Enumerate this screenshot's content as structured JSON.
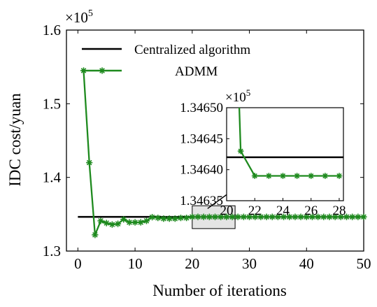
{
  "chart_data": {
    "type": "line",
    "xlabel": "Number of iterations",
    "ylabel": "IDC cost/yuan",
    "y_multiplier": "×10",
    "y_multiplier_exp": "5",
    "xlim": [
      -2,
      50
    ],
    "ylim": [
      1.3,
      1.6
    ],
    "x_ticks": [
      "0",
      "10",
      "20",
      "30",
      "40",
      "50"
    ],
    "y_ticks": [
      "1.3",
      "1.4",
      "1.5",
      "1.6"
    ],
    "legend_position": "top-right",
    "series": [
      {
        "name": "Centralized algorithm",
        "color": "#000000",
        "style": "solid",
        "x": [
          0,
          50
        ],
        "y": [
          1.3464,
          1.3464
        ]
      },
      {
        "name": "ADMM",
        "color": "#1e8a1e",
        "marker": "asterisk",
        "x": [
          1,
          2,
          3,
          4,
          5,
          6,
          7,
          8,
          9,
          10,
          11,
          12,
          13,
          14,
          15,
          16,
          17,
          18,
          19,
          20,
          21,
          22,
          23,
          24,
          25,
          26,
          27,
          28,
          29,
          30,
          31,
          32,
          33,
          34,
          35,
          36,
          37,
          38,
          39,
          40,
          41,
          42,
          43,
          44,
          45,
          46,
          47,
          48,
          49,
          50
        ],
        "y": [
          1.545,
          1.42,
          1.322,
          1.341,
          1.338,
          1.336,
          1.337,
          1.343,
          1.339,
          1.339,
          1.339,
          1.341,
          1.346,
          1.345,
          1.344,
          1.344,
          1.344,
          1.345,
          1.345,
          1.3464,
          1.34643,
          1.34639,
          1.34639,
          1.34639,
          1.34639,
          1.34639,
          1.34639,
          1.34639,
          1.34639,
          1.34639,
          1.34639,
          1.34639,
          1.34639,
          1.34639,
          1.34639,
          1.34639,
          1.34639,
          1.34639,
          1.34639,
          1.34639,
          1.34639,
          1.34639,
          1.34639,
          1.34639,
          1.34639,
          1.34639,
          1.34639,
          1.34639,
          1.34639,
          1.34639
        ]
      }
    ],
    "inset": {
      "xlim": [
        20,
        28.3
      ],
      "ylim": [
        1.34635,
        1.3465
      ],
      "x_ticks": [
        "20",
        "22",
        "24",
        "26",
        "28"
      ],
      "y_ticks": [
        "1.34635",
        "1.34640",
        "1.34645",
        "1.34650"
      ],
      "y_multiplier": "×10",
      "y_multiplier_exp": "5",
      "central_y": 1.34642,
      "admm_x": [
        21,
        22,
        23,
        24,
        25,
        26,
        27,
        28
      ],
      "admm_y": [
        1.34643,
        1.34639,
        1.34639,
        1.34639,
        1.34639,
        1.34639,
        1.34639,
        1.34639
      ],
      "admm_entry": {
        "x": 20.9,
        "y": 1.34652
      }
    },
    "zoom_box": {
      "x": [
        20,
        27.5
      ],
      "y": [
        1.3305,
        1.3615
      ],
      "fill": "#e4e4e4"
    }
  }
}
